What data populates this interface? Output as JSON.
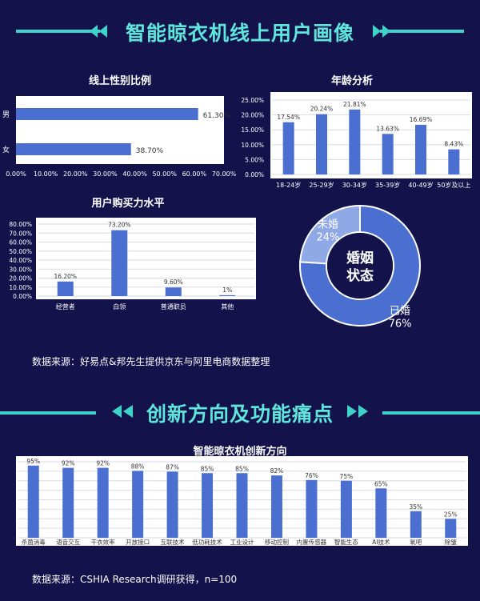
{
  "section1": {
    "title": "智能晾衣机线上用户画像"
  },
  "section2": {
    "title": "创新方向及功能痛点"
  },
  "colors": {
    "background": "#13124a",
    "accent": "#5fe6dc",
    "bar": "#4a6fd0",
    "panel": "#ffffff",
    "donut_main": "#4a6fd0",
    "donut_minor": "#8fa8e6"
  },
  "gender": {
    "title": "线上性别比例",
    "chart_data": {
      "type": "bar",
      "orientation": "horizontal",
      "categories": [
        "男",
        "女"
      ],
      "values": [
        61.3,
        38.7
      ],
      "value_labels": [
        "61.30%",
        "38.70%"
      ],
      "xlim": [
        0,
        70
      ],
      "x_ticks": [
        "0.00%",
        "10.00%",
        "20.00%",
        "30.00%",
        "40.00%",
        "50.00%",
        "60.00%",
        "70.00%"
      ]
    }
  },
  "age": {
    "title": "年龄分析",
    "chart_data": {
      "type": "bar",
      "categories": [
        "18-24岁",
        "25-29岁",
        "30-34岁",
        "35-39岁",
        "40-49岁",
        "50岁及以上"
      ],
      "values": [
        17.54,
        20.24,
        21.81,
        13.63,
        16.69,
        8.43
      ],
      "value_labels": [
        "17.54%",
        "20.24%",
        "21.81%",
        "13.63%",
        "16.69%",
        "8.43%"
      ],
      "ylim": [
        0,
        25
      ],
      "y_ticks": [
        "0.00%",
        "5.00%",
        "10.00%",
        "15.00%",
        "20.00%",
        "25.00%"
      ]
    }
  },
  "purchase": {
    "title": "用户购买力水平",
    "chart_data": {
      "type": "bar",
      "categories": [
        "经营者",
        "白领",
        "普通职员",
        "其他"
      ],
      "values": [
        16.2,
        73.2,
        9.6,
        1
      ],
      "value_labels": [
        "16.20%",
        "73.20%",
        "9.60%",
        "1%"
      ],
      "ylim": [
        0,
        80
      ],
      "y_ticks": [
        "0.00%",
        "10.00%",
        "20.00%",
        "30.00%",
        "40.00%",
        "50.00%",
        "60.00%",
        "70.00%",
        "80.00%"
      ]
    }
  },
  "marriage": {
    "center_line1": "婚姻",
    "center_line2": "状态",
    "chart_data": {
      "type": "pie",
      "style": "donut",
      "labels": [
        "已婚",
        "未婚"
      ],
      "values": [
        76,
        24
      ],
      "value_labels": [
        "76%",
        "24%"
      ]
    }
  },
  "source1": "数据来源：好易点&邦先生提供京东与阿里电商数据整理",
  "innovation": {
    "title": "智能晾衣机创新方向",
    "chart_data": {
      "type": "bar",
      "categories": [
        "杀菌消毒",
        "语音交互",
        "干衣效率",
        "开放接口",
        "互联技术",
        "低功耗技术",
        "工业设计",
        "移动控制",
        "内置传感器",
        "智能生态",
        "AI技术",
        "氧吧",
        "除皱"
      ],
      "values": [
        95,
        92,
        92,
        88,
        87,
        85,
        85,
        82,
        76,
        75,
        65,
        35,
        25
      ],
      "value_labels": [
        "95%",
        "92%",
        "92%",
        "88%",
        "87%",
        "85%",
        "85%",
        "82%",
        "76%",
        "75%",
        "65%",
        "35%",
        "25%"
      ],
      "ylim": [
        0,
        100
      ]
    }
  },
  "source2": "数据来源：CSHIA Research调研获得，n=100"
}
